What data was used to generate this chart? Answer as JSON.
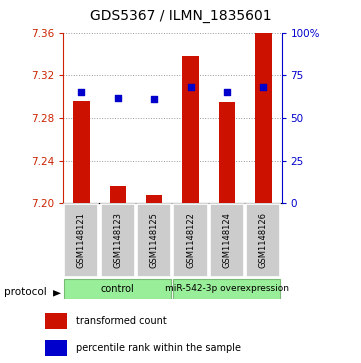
{
  "title": "GDS5367 / ILMN_1835601",
  "samples": [
    "GSM1148121",
    "GSM1148123",
    "GSM1148125",
    "GSM1148122",
    "GSM1148124",
    "GSM1148126"
  ],
  "transformed_counts": [
    7.296,
    7.216,
    7.208,
    7.338,
    7.295,
    7.36
  ],
  "percentile_ranks": [
    65,
    62,
    61,
    68,
    65,
    68
  ],
  "ylim_left": [
    7.2,
    7.36
  ],
  "ylim_right": [
    0,
    100
  ],
  "yticks_left": [
    7.2,
    7.24,
    7.28,
    7.32,
    7.36
  ],
  "yticks_right": [
    0,
    25,
    50,
    75,
    100
  ],
  "bar_color": "#cc1100",
  "dot_color": "#0000cc",
  "bar_baseline": 7.2,
  "group_labels": [
    "control",
    "miR-542-3p overexpression"
  ],
  "group_color": "#99ee99",
  "sample_box_color": "#cccccc",
  "legend_items": [
    {
      "color": "#cc1100",
      "label": "transformed count"
    },
    {
      "color": "#0000cc",
      "label": "percentile rank within the sample"
    }
  ],
  "protocol_label": "protocol",
  "title_fontsize": 10,
  "tick_fontsize": 7.5,
  "sample_fontsize": 6.0,
  "group_fontsize": 7.0,
  "legend_fontsize": 7.0
}
